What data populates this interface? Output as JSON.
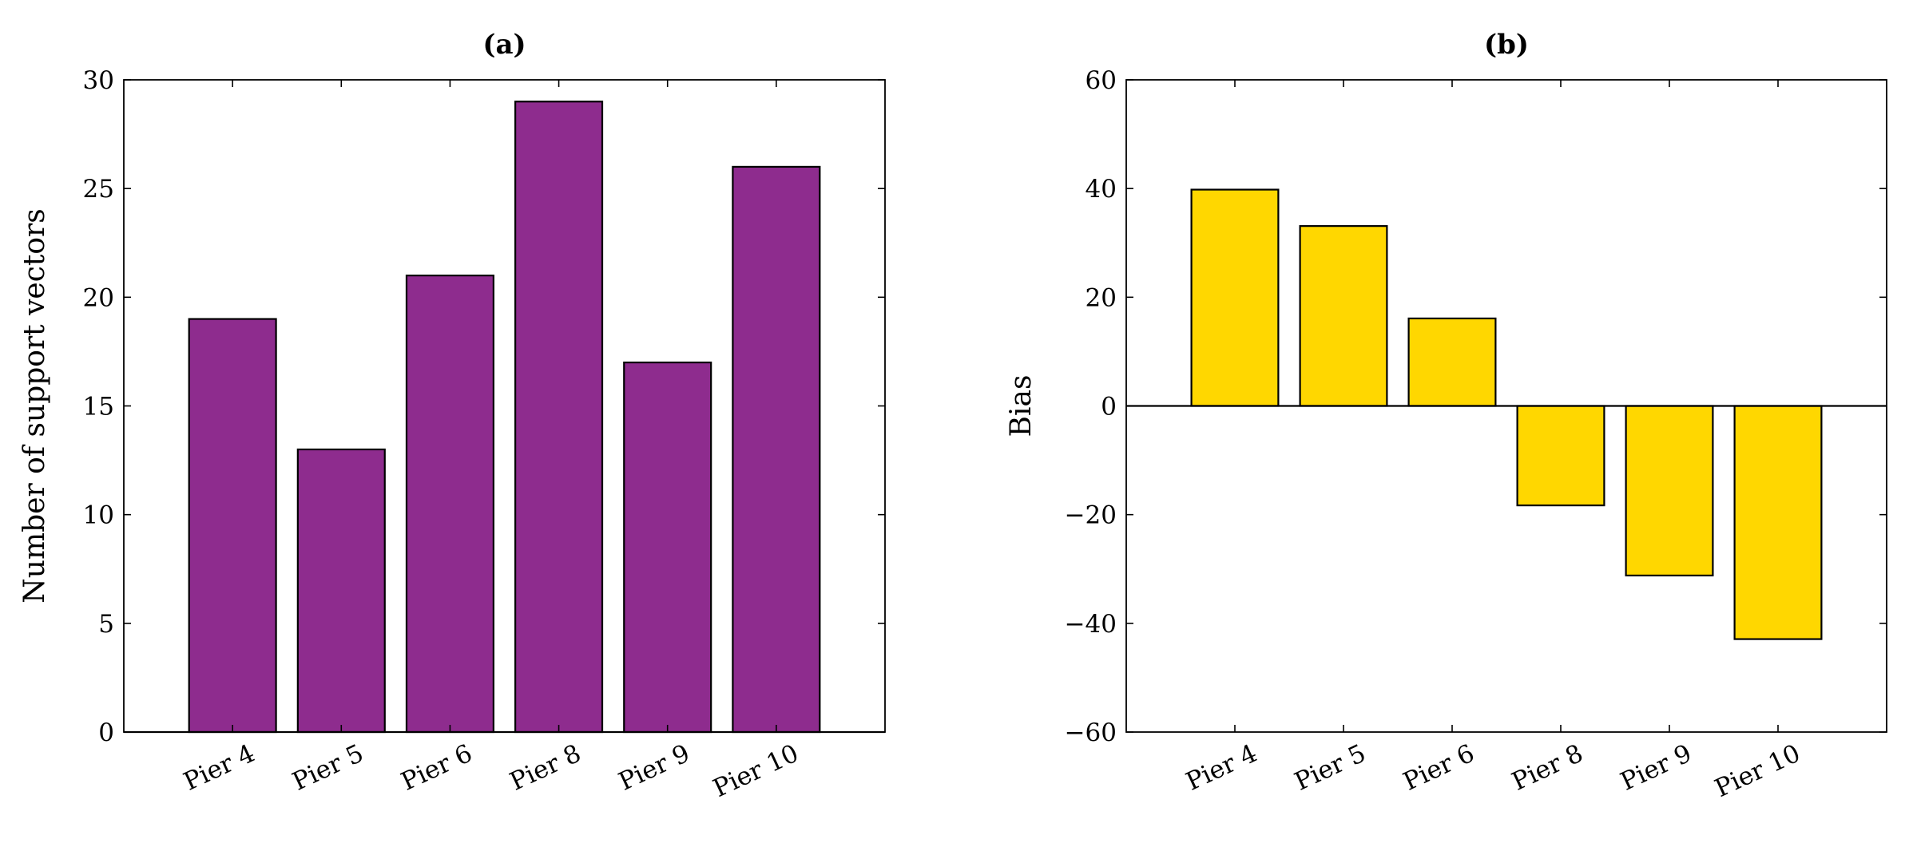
{
  "chart_data": [
    {
      "type": "bar",
      "title": "(a)",
      "xlabel": "",
      "ylabel": "Number of support vectors",
      "categories": [
        "Pier 4",
        "Pier 5",
        "Pier 6",
        "Pier 8",
        "Pier 9",
        "Pier 10"
      ],
      "values": [
        19,
        13,
        21,
        29,
        17,
        26
      ],
      "ylim": [
        0,
        30
      ],
      "yticks": [
        0,
        5,
        10,
        15,
        20,
        25,
        30
      ],
      "ytick_labels": [
        "0",
        "5",
        "10",
        "15",
        "20",
        "25",
        "30"
      ],
      "bar_color": "#8e2c8e",
      "grid": false,
      "legend": "none"
    },
    {
      "type": "bar",
      "title": "(b)",
      "xlabel": "",
      "ylabel": "Bias",
      "categories": [
        "Pier 4",
        "Pier 5",
        "Pier 6",
        "Pier 8",
        "Pier 9",
        "Pier 10"
      ],
      "values": [
        39.8,
        33.1,
        16.1,
        -18.3,
        -31.2,
        -42.9
      ],
      "ylim": [
        -60,
        60
      ],
      "yticks": [
        -60,
        -40,
        -20,
        0,
        20,
        40,
        60
      ],
      "ytick_labels": [
        "−60",
        "−40",
        "−20",
        "0",
        "20",
        "40",
        "60"
      ],
      "bar_color": "#ffd700",
      "grid": false,
      "legend": "none"
    }
  ]
}
